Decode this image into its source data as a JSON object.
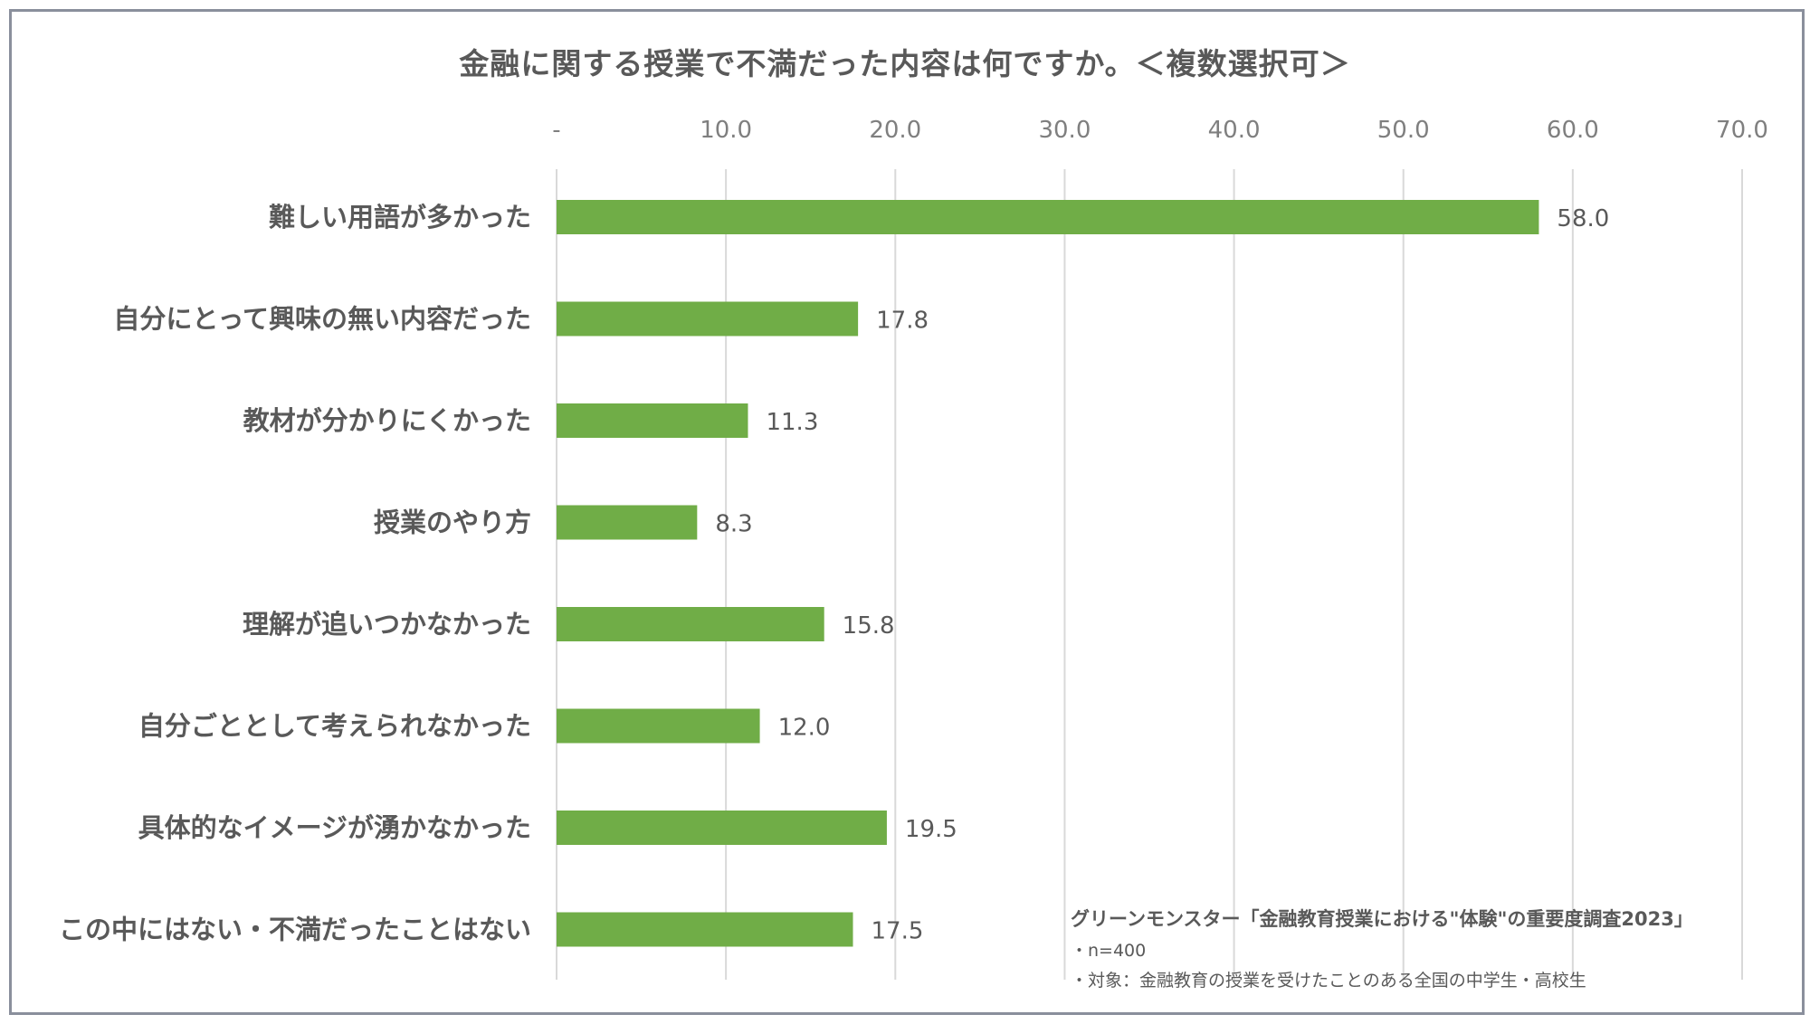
{
  "chart_data": {
    "type": "bar",
    "orientation": "horizontal",
    "title": "金融に関する授業で不満だった内容は何ですか。＜複数選択可＞",
    "categories": [
      "難しい用語が多かった",
      "自分にとって興味の無い内容だった",
      "教材が分かりにくかった",
      "授業のやり方",
      "理解が追いつかなかった",
      "自分ごととして考えられなかった",
      "具体的なイメージが湧かなかった",
      "この中にはない・不満だったことはない"
    ],
    "values": [
      58.0,
      17.8,
      11.3,
      8.3,
      15.8,
      12.0,
      19.5,
      17.5
    ],
    "value_labels": [
      "58.0",
      "17.8",
      "11.3",
      "8.3",
      "15.8",
      "12.0",
      "19.5",
      "17.5"
    ],
    "xlim": [
      0,
      70
    ],
    "ticks": [
      0,
      10,
      20,
      30,
      40,
      50,
      60,
      70
    ],
    "tick_labels": [
      "-",
      "10.0",
      "20.0",
      "30.0",
      "40.0",
      "50.0",
      "60.0",
      "70.0"
    ],
    "tick_position": "top",
    "grid": true,
    "legend": "none",
    "bar_color": "#70ad47",
    "grid_color": "#d9d9d9"
  },
  "source": {
    "text": "グリーンモンスター「金融教育授業における\"体験\"の重要度調査2023」",
    "notes": [
      "・n=400",
      "・対象：金融教育の授業を受けたことのある全国の中学生・高校生"
    ]
  }
}
